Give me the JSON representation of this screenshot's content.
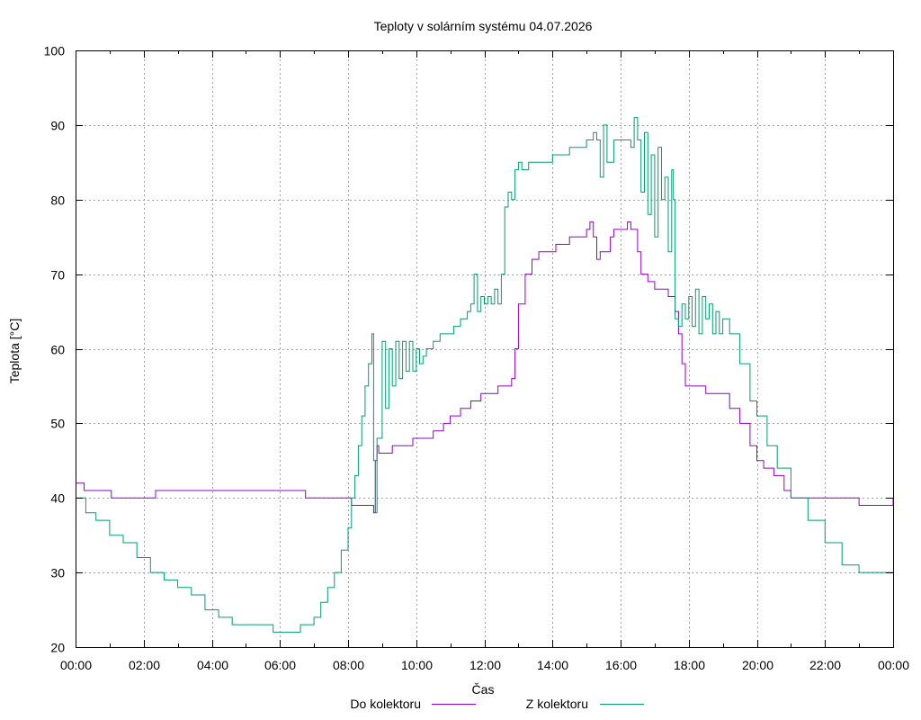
{
  "colors": {
    "background": "#ffffff",
    "do_kolektoru": "#9400d3",
    "z_kolektoru": "#009e73",
    "grid": "#a0a0a0"
  },
  "chart_data": {
    "type": "line",
    "title": "Teploty v solárním systému 04.07.2026",
    "xlabel": "Čas",
    "ylabel": "Teplota [°C]",
    "xlim": [
      0,
      24
    ],
    "ylim": [
      20,
      100
    ],
    "grid": true,
    "legend_position": "bottom",
    "x_ticks": [
      "00:00",
      "02:00",
      "04:00",
      "06:00",
      "08:00",
      "10:00",
      "12:00",
      "14:00",
      "16:00",
      "18:00",
      "20:00",
      "22:00",
      "00:00"
    ],
    "y_ticks": [
      "20",
      "30",
      "40",
      "50",
      "60",
      "70",
      "80",
      "90",
      "100"
    ],
    "series": [
      {
        "name": "Do kolektoru",
        "color": "#9400d3",
        "x": [
          0,
          0.2,
          0.25,
          1.0,
          1.05,
          2.3,
          2.35,
          6.7,
          6.75,
          8.0,
          8.1,
          8.3,
          8.75,
          8.8,
          8.85,
          8.9,
          9.0,
          9.3,
          9.6,
          9.9,
          10.2,
          10.5,
          10.8,
          11.0,
          11.3,
          11.6,
          11.9,
          12.4,
          12.8,
          12.85,
          12.9,
          13.0,
          13.2,
          13.4,
          13.6,
          14.1,
          14.5,
          14.7,
          15.0,
          15.1,
          15.2,
          15.3,
          15.4,
          15.5,
          15.7,
          15.8,
          16.0,
          16.2,
          16.3,
          16.5,
          16.6,
          16.8,
          17.0,
          17.2,
          17.4,
          17.6,
          17.7,
          17.8,
          17.9,
          18.1,
          18.5,
          18.9,
          19.2,
          19.5,
          19.8,
          20.0,
          20.2,
          20.5,
          20.8,
          21.0,
          21.5,
          22.0,
          22.5,
          23.0,
          23.2,
          24.0
        ],
        "y": [
          42,
          42,
          41,
          41,
          40,
          40,
          41,
          41,
          40,
          40,
          39,
          39,
          38,
          45,
          47,
          46,
          46,
          47,
          47,
          48,
          48,
          49,
          50,
          51,
          52,
          53,
          54,
          55,
          56,
          56,
          60,
          66,
          70,
          72,
          73,
          74,
          75,
          75,
          76,
          77,
          75,
          72,
          73,
          73,
          75,
          76,
          76,
          77,
          76,
          73,
          70,
          69,
          68,
          68,
          67,
          65,
          62,
          58,
          55,
          55,
          54,
          54,
          52,
          50,
          47,
          45,
          44,
          43,
          41,
          40,
          40,
          40,
          40,
          39,
          39,
          40
        ]
      },
      {
        "name": "Z kolektoru",
        "color": "#009e73",
        "x": [
          0,
          0.3,
          0.6,
          1.0,
          1.4,
          1.8,
          2.2,
          2.6,
          3.0,
          3.4,
          3.8,
          4.2,
          4.6,
          5.0,
          5.4,
          5.8,
          6.2,
          6.6,
          6.8,
          7.0,
          7.2,
          7.4,
          7.6,
          7.8,
          8.0,
          8.1,
          8.2,
          8.3,
          8.4,
          8.5,
          8.6,
          8.7,
          8.75,
          8.8,
          8.85,
          9.0,
          9.1,
          9.2,
          9.3,
          9.4,
          9.5,
          9.6,
          9.7,
          9.8,
          9.9,
          10.0,
          10.1,
          10.2,
          10.3,
          10.5,
          10.7,
          10.9,
          11.1,
          11.3,
          11.5,
          11.6,
          11.7,
          11.8,
          11.9,
          12.0,
          12.1,
          12.2,
          12.3,
          12.4,
          12.5,
          12.6,
          12.7,
          12.8,
          12.9,
          13.0,
          13.1,
          13.3,
          13.6,
          14.0,
          14.5,
          14.8,
          15.0,
          15.1,
          15.2,
          15.3,
          15.4,
          15.5,
          15.6,
          15.8,
          16.0,
          16.3,
          16.4,
          16.5,
          16.6,
          16.7,
          16.8,
          16.9,
          17.0,
          17.1,
          17.2,
          17.3,
          17.4,
          17.5,
          17.55,
          17.6,
          17.7,
          17.8,
          17.9,
          18.0,
          18.1,
          18.2,
          18.3,
          18.4,
          18.5,
          18.6,
          18.7,
          18.8,
          18.9,
          19.0,
          19.2,
          19.5,
          19.8,
          20.0,
          20.3,
          20.6,
          21.0,
          21.5,
          22.0,
          22.5,
          23.0,
          23.3,
          23.6,
          24.0
        ],
        "y": [
          40,
          38,
          37,
          35,
          34,
          32,
          30,
          29,
          28,
          27,
          25,
          24,
          23,
          23,
          23,
          22,
          22,
          23,
          23,
          24,
          26,
          28,
          30,
          33,
          36,
          40,
          43,
          47,
          51,
          55,
          58,
          62,
          45,
          38,
          48,
          61,
          52,
          60,
          55,
          61,
          56,
          61,
          57,
          61,
          57,
          60,
          58,
          59,
          60,
          61,
          62,
          62,
          63,
          64,
          65,
          66,
          70,
          65,
          67,
          66,
          67,
          66,
          68,
          66,
          70,
          79,
          81,
          80,
          84,
          85,
          84,
          85,
          85,
          86,
          87,
          87,
          88,
          88,
          89,
          88,
          83,
          90,
          85,
          88,
          88,
          87,
          91,
          88,
          81,
          89,
          78,
          86,
          75,
          87,
          80,
          83,
          73,
          84,
          80,
          64,
          63,
          66,
          64,
          67,
          63,
          68,
          62,
          67,
          64,
          66,
          62,
          65,
          62,
          64,
          62,
          58,
          53,
          51,
          47,
          44,
          40,
          37,
          34,
          31,
          30,
          30,
          30,
          30
        ]
      }
    ]
  }
}
